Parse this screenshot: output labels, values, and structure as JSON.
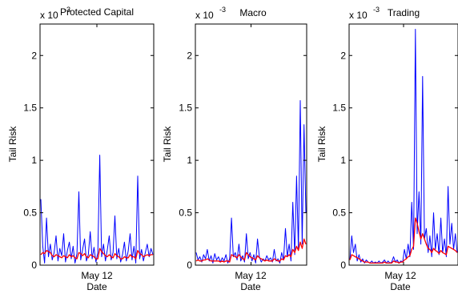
{
  "colors": {
    "background": "#ffffff",
    "axes": "#000000",
    "series_blue": "#0000ff",
    "series_red": "#ff0000"
  },
  "chart_data": [
    {
      "type": "line",
      "title": "Protected Capital",
      "xlabel": "Date",
      "ylabel": "Tail Risk",
      "exponent_label": "x 10",
      "exponent_power": "-3",
      "ylim": [
        0,
        0.0023
      ],
      "yticks": [
        0,
        0.0005,
        0.001,
        0.0015,
        0.002
      ],
      "yticklabels": [
        "0",
        "0.5",
        "1",
        "1.5",
        "2"
      ],
      "xticklabels": [
        "May 12"
      ],
      "xtick_positions": [
        0.5
      ],
      "grid": false,
      "series": [
        {
          "color": "#0000ff",
          "values": [
            0.00063,
            0.00018,
            2e-05,
            0.00045,
            8e-05,
            0.0002,
            5e-05,
            0.00012,
            0.00028,
            4e-05,
            0.00016,
            9e-05,
            0.0003,
            3e-05,
            0.00014,
            0.00022,
            6e-05,
            0.00018,
            2e-05,
            0.00011,
            0.0007,
            5e-05,
            0.00015,
            0.00025,
            4e-05,
            0.0001,
            0.00032,
            6e-05,
            0.00017,
            3e-05,
            0.00012,
            0.00105,
            8e-05,
            0.0002,
            4e-05,
            0.00015,
            0.00028,
            5e-05,
            0.00012,
            0.00047,
            6e-05,
            0.00016,
            3e-05,
            0.0001,
            0.00022,
            4e-05,
            0.00014,
            0.0003,
            5e-05,
            0.00018,
            2e-05,
            0.00085,
            6e-05,
            0.00015,
            4e-05,
            0.00012,
            0.0002,
            8e-05,
            0.00016,
            0.0001
          ]
        },
        {
          "color": "#ff0000",
          "values": [
            0.0001,
            0.00012,
            0.00011,
            0.00014,
            0.00013,
            0.00012,
            9e-05,
            8e-05,
            0.0001,
            9e-05,
            8e-05,
            7e-05,
            9e-05,
            8e-05,
            7e-05,
            0.0001,
            8e-05,
            9e-05,
            7e-05,
            6e-05,
            0.00012,
            0.00011,
            9e-05,
            0.00011,
            8e-05,
            7e-05,
            0.0001,
            9e-05,
            8e-05,
            6e-05,
            6e-05,
            0.00016,
            0.00013,
            0.00011,
            9e-05,
            8e-05,
            0.0001,
            8e-05,
            7e-05,
            0.00011,
            9e-05,
            8e-05,
            6e-05,
            6e-05,
            8e-05,
            7e-05,
            7e-05,
            0.0001,
            8e-05,
            8e-05,
            6e-05,
            0.00014,
            0.00011,
            0.0001,
            8e-05,
            9e-05,
            0.0001,
            9e-05,
            0.0001,
            0.0001
          ]
        }
      ]
    },
    {
      "type": "line",
      "title": "Macro",
      "xlabel": "Date",
      "ylabel": "Tail Risk",
      "exponent_label": "x 10",
      "exponent_power": "-3",
      "ylim": [
        0,
        0.0023
      ],
      "yticks": [
        0,
        0.0005,
        0.001,
        0.0015,
        0.002
      ],
      "yticklabels": [
        "0",
        "0.5",
        "1",
        "1.5",
        "2"
      ],
      "xticklabels": [
        "May 12"
      ],
      "xtick_positions": [
        0.5
      ],
      "grid": false,
      "series": [
        {
          "color": "#0000ff",
          "values": [
            0.00012,
            5e-05,
            8e-05,
            3e-05,
            0.0001,
            6e-05,
            0.00015,
            4e-05,
            9e-05,
            2e-05,
            0.00011,
            5e-05,
            8e-05,
            3e-05,
            7e-05,
            4e-05,
            0.0001,
            2e-05,
            6e-05,
            0.00045,
            8e-05,
            0.00012,
            5e-05,
            0.0002,
            4e-05,
            9e-05,
            3e-05,
            0.0003,
            6e-05,
            0.00012,
            4e-05,
            0.0001,
            2e-05,
            0.00025,
            8e-05,
            3e-05,
            6e-05,
            4e-05,
            9e-05,
            5e-05,
            7e-05,
            3e-05,
            0.00015,
            4e-05,
            6e-05,
            2e-05,
            0.00012,
            5e-05,
            0.00035,
            8e-05,
            0.0002,
            4e-05,
            0.0006,
            0.0001,
            0.00085,
            0.00015,
            0.00157,
            0.0002,
            0.00134,
            0.0005
          ]
        },
        {
          "color": "#ff0000",
          "values": [
            4e-05,
            5e-05,
            4e-05,
            4e-05,
            5e-05,
            5e-05,
            6e-05,
            5e-05,
            4e-05,
            4e-05,
            4e-05,
            4e-05,
            4e-05,
            3e-05,
            4e-05,
            3e-05,
            4e-05,
            4e-05,
            3e-05,
            0.0001,
            9e-05,
            8e-05,
            7e-05,
            0.0001,
            8e-05,
            6e-05,
            5e-05,
            0.00012,
            0.0001,
            8e-05,
            7e-05,
            6e-05,
            5e-05,
            9e-05,
            7e-05,
            6e-05,
            5e-05,
            4e-05,
            5e-05,
            4e-05,
            4e-05,
            4e-05,
            6e-05,
            5e-05,
            4e-05,
            4e-05,
            6e-05,
            5e-05,
            9e-05,
            8e-05,
            0.0001,
            8e-05,
            0.00015,
            0.00012,
            0.00018,
            0.00014,
            0.00022,
            0.00016,
            0.00025,
            0.0002
          ]
        }
      ]
    },
    {
      "type": "line",
      "title": "Trading",
      "xlabel": "Date",
      "ylabel": "Tail Risk",
      "exponent_label": "x 10",
      "exponent_power": "-3",
      "ylim": [
        0,
        0.0023
      ],
      "yticks": [
        0,
        0.0005,
        0.001,
        0.0015,
        0.002
      ],
      "yticklabels": [
        "0",
        "0.5",
        "1",
        "1.5",
        "2"
      ],
      "xticklabels": [
        "May 12"
      ],
      "xtick_positions": [
        0.5
      ],
      "grid": false,
      "series": [
        {
          "color": "#0000ff",
          "values": [
            5e-05,
            0.00028,
            0.00012,
            0.0002,
            4e-05,
            0.0001,
            3e-05,
            6e-05,
            2e-05,
            5e-05,
            3e-05,
            2e-05,
            4e-05,
            2e-05,
            3e-05,
            2e-05,
            4e-05,
            2e-05,
            3e-05,
            5e-05,
            2e-05,
            4e-05,
            2e-05,
            3e-05,
            8e-05,
            3e-05,
            5e-05,
            2e-05,
            4e-05,
            3e-05,
            0.00015,
            6e-05,
            0.0002,
            8e-05,
            0.0006,
            0.00015,
            0.00225,
            0.0003,
            0.0007,
            0.0002,
            0.0018,
            0.00025,
            0.00035,
            0.00012,
            0.00028,
            8e-05,
            0.0005,
            0.00015,
            0.0003,
            0.0001,
            0.00045,
            0.00012,
            0.00025,
            8e-05,
            0.00075,
            0.0002,
            0.0004,
            0.00015,
            0.0003,
            0.00012
          ]
        },
        {
          "color": "#ff0000",
          "values": [
            5e-05,
            0.0001,
            9e-05,
            8e-05,
            7e-05,
            6e-05,
            5e-05,
            4e-05,
            3e-05,
            3e-05,
            3e-05,
            2e-05,
            2e-05,
            2e-05,
            2e-05,
            2e-05,
            2e-05,
            2e-05,
            2e-05,
            3e-05,
            2e-05,
            2e-05,
            2e-05,
            2e-05,
            4e-05,
            3e-05,
            3e-05,
            2e-05,
            3e-05,
            3e-05,
            5e-05,
            6e-05,
            8e-05,
            9e-05,
            0.00015,
            0.00018,
            0.00045,
            0.0004,
            0.00032,
            0.00025,
            0.0003,
            0.00025,
            0.0002,
            0.00016,
            0.00015,
            0.00012,
            0.00016,
            0.00014,
            0.00013,
            0.00011,
            0.00014,
            0.00012,
            0.00011,
            0.0001,
            0.00018,
            0.00017,
            0.00016,
            0.00015,
            0.00014,
            0.00012
          ]
        }
      ]
    }
  ]
}
